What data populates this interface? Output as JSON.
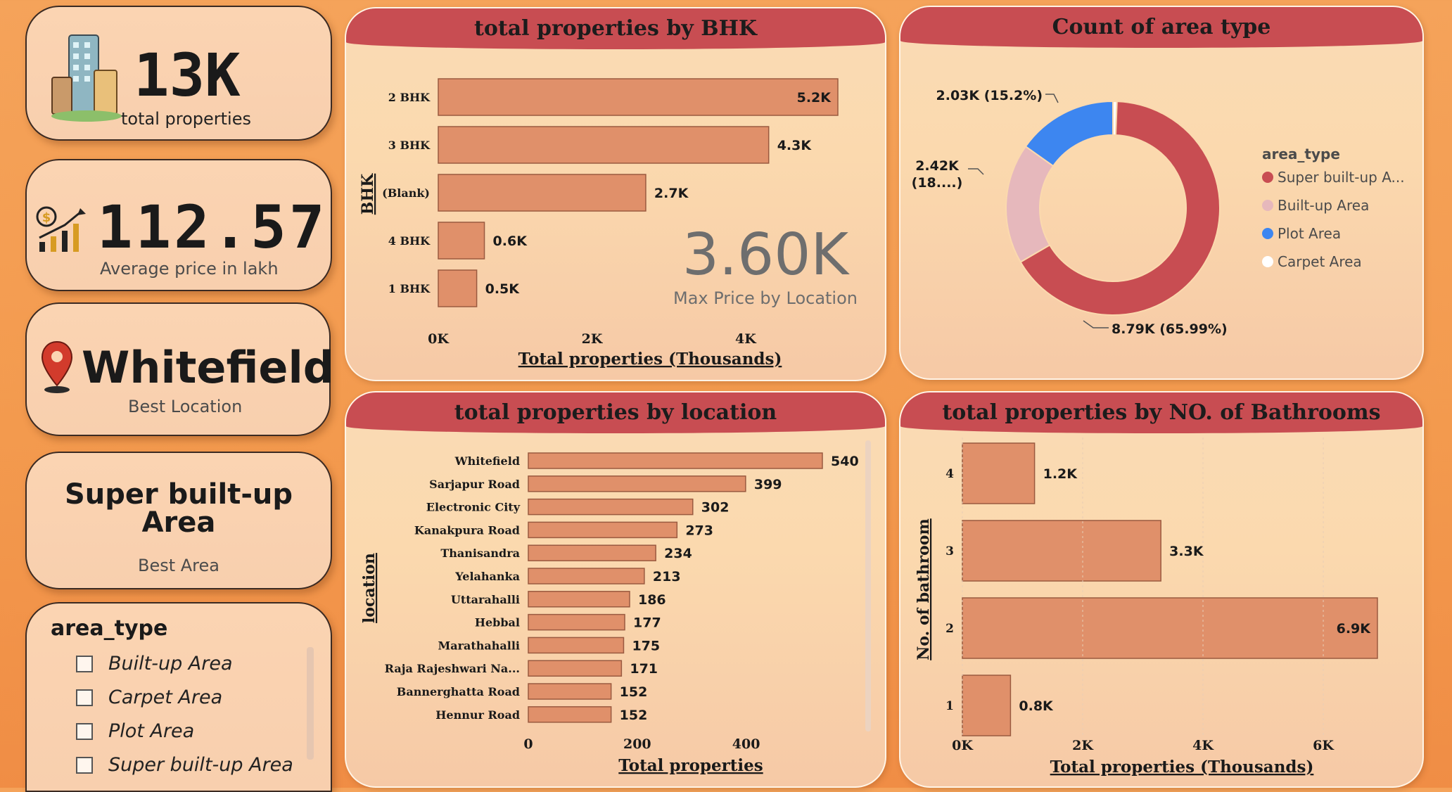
{
  "kpis": {
    "total_properties": {
      "value": "13K",
      "label": "total properties"
    },
    "avg_price": {
      "value": "112.57",
      "label": "Average price in lakh"
    },
    "best_location": {
      "value": "Whitefield",
      "label": "Best Location"
    },
    "best_area": {
      "value_line1": "Super built-up",
      "value_line2": "Area",
      "label": "Best Area"
    }
  },
  "slicer": {
    "title": "area_type",
    "items": [
      "Built-up Area",
      "Carpet Area",
      "Plot Area",
      "Super built-up Area"
    ]
  },
  "colors": {
    "bar": "#e0906a",
    "bar_border": "#9a5a40",
    "header": "#c84d52",
    "super": "#c84d52",
    "builtup": "#e6b8bc",
    "plot": "#3d86f0",
    "carpet": "#ffffff"
  },
  "chart_data": [
    {
      "id": "bhk",
      "type": "bar",
      "orientation": "horizontal",
      "title": "total properties by BHK",
      "xlabel": "Total properties (Thousands)",
      "ylabel": "BHK",
      "categories": [
        "2 BHK",
        "3 BHK",
        "(Blank)",
        "4 BHK",
        "1 BHK"
      ],
      "values": [
        5.2,
        4.3,
        2.7,
        0.6,
        0.5
      ],
      "data_labels": [
        "5.2K",
        "4.3K",
        "2.7K",
        "0.6K",
        "0.5K"
      ],
      "x_ticks": [
        "0K",
        "2K",
        "4K"
      ],
      "xlim": [
        0,
        5.2
      ],
      "card": {
        "value": "3.60K",
        "label": "Max Price by Location"
      }
    },
    {
      "id": "area_type",
      "type": "pie",
      "title": "Count of area type",
      "legend_title": "area_type",
      "legend_position": "right",
      "slices": [
        {
          "name": "Super built-up A...",
          "value": 65.99,
          "label": "8.79K (65.99%)",
          "color": "#c84d52"
        },
        {
          "name": "Built-up  Area",
          "value": 18.2,
          "label_line1": "2.42K",
          "label_line2": "(18....)",
          "color": "#e6b8bc"
        },
        {
          "name": "Plot  Area",
          "value": 15.2,
          "label": "2.03K (15.2%)",
          "color": "#3d86f0"
        },
        {
          "name": "Carpet  Area",
          "value": 0.61,
          "label": "",
          "color": "#ffffff"
        }
      ]
    },
    {
      "id": "location",
      "type": "bar",
      "orientation": "horizontal",
      "title": "total properties by location",
      "xlabel": "Total properties",
      "ylabel": "location",
      "categories": [
        "Whitefield",
        "Sarjapur Road",
        "Electronic City",
        "Kanakpura Road",
        "Thanisandra",
        "Yelahanka",
        "Uttarahalli",
        "Hebbal",
        "Marathahalli",
        "Raja Rajeshwari Na...",
        "Bannerghatta Road",
        "Hennur Road"
      ],
      "values": [
        540,
        399,
        302,
        273,
        234,
        213,
        186,
        177,
        175,
        171,
        152,
        152
      ],
      "x_ticks": [
        "0",
        "200",
        "400"
      ],
      "xlim": [
        0,
        540
      ]
    },
    {
      "id": "bathrooms",
      "type": "bar",
      "orientation": "horizontal",
      "title": "total properties by NO. of Bathrooms",
      "xlabel": "Total properties (Thousands)",
      "ylabel": "No. of bathroom",
      "categories": [
        "4",
        "3",
        "2",
        "1"
      ],
      "values": [
        1.2,
        3.3,
        6.9,
        0.8
      ],
      "data_labels": [
        "1.2K",
        "3.3K",
        "6.9K",
        "0.8K"
      ],
      "x_ticks": [
        "0K",
        "2K",
        "4K",
        "6K"
      ],
      "xlim": [
        0,
        6.9
      ]
    }
  ]
}
